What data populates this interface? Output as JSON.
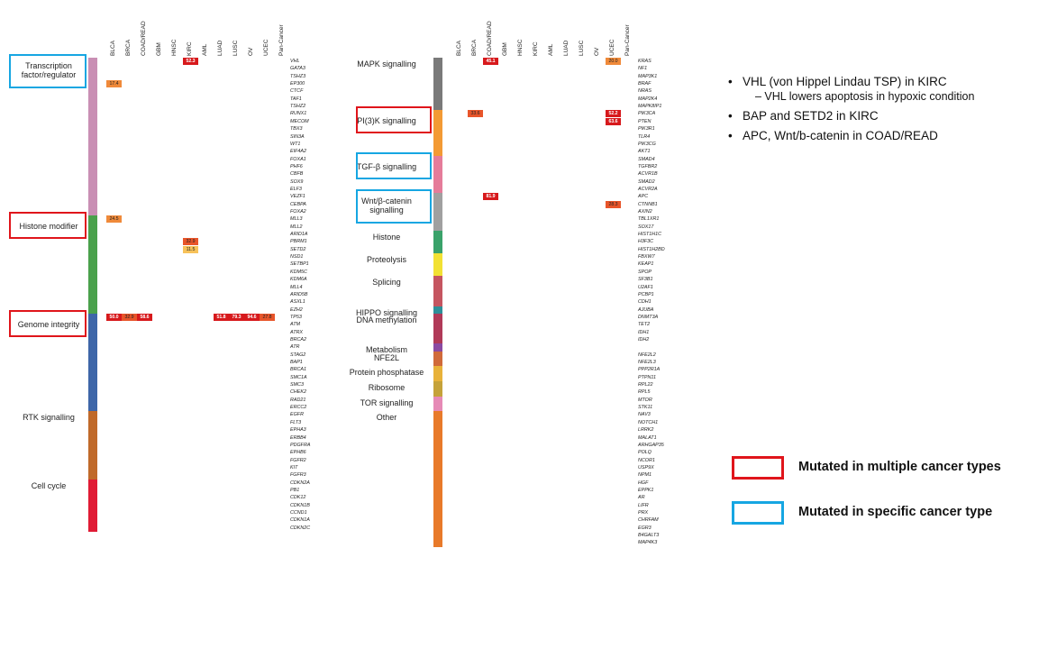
{
  "columns": [
    "BLCA",
    "BRCA",
    "COAD/READ",
    "GBM",
    "HNSC",
    "KIRC",
    "AML",
    "LUAD",
    "LUSC",
    "OV",
    "UCEC",
    "Pan-Cancer"
  ],
  "left_panel": {
    "groups": [
      {
        "label": "Transcription factor/regulator",
        "color": "#c98fb4",
        "genes": [
          "VHL",
          "GATA3",
          "TSHZ3",
          "EP300",
          "CTCF",
          "TAF1",
          "TSHZ2",
          "RUNX1",
          "MECOM",
          "TBX3",
          "SIN3A",
          "WT1",
          "EIF4A2",
          "FOXA1",
          "PHF6",
          "CBFB",
          "SOX9",
          "ELF3",
          "VEZF1",
          "CEBPA",
          "FOXA2"
        ]
      },
      {
        "label": "Histone modifier",
        "color": "#4aa14c",
        "genes": [
          "MLL3",
          "MLL2",
          "ARID1A",
          "PBRM1",
          "SETD2",
          "NSD1",
          "SETBP1",
          "KDM5C",
          "KDM6A",
          "MLL4",
          "ARID5B",
          "ASXL1",
          "EZH2"
        ]
      },
      {
        "label": "Genome integrity",
        "color": "#3e66a8",
        "genes": [
          "TP53",
          "ATM",
          "ATRX",
          "BRCA2",
          "ATR",
          "STAG2",
          "BAP1",
          "BRCA1",
          "SMC1A",
          "SMC3",
          "CHEK2",
          "RAD21",
          "ERCC2"
        ]
      },
      {
        "label": "RTK signalling",
        "color": "#c06a2a",
        "genes": [
          "EGFR",
          "FLT3",
          "EPHA3",
          "ERBB4",
          "PDGFRA",
          "EPHB6",
          "FGFR2",
          "KIT",
          "FGFR3"
        ]
      },
      {
        "label": "Cell cycle",
        "color": "#e01b35",
        "genes": [
          "CDKN2A",
          "PB1",
          "CDK12",
          "CDKN1B",
          "CCND1",
          "CDKN1A",
          "CDKN2C"
        ]
      }
    ]
  },
  "right_panel": {
    "groups": [
      {
        "label": "MAPK signalling",
        "color": "#7a7a7a",
        "genes": [
          "KRAS",
          "NF1",
          "MAP3K1",
          "BRAF",
          "NRAS",
          "MAP2K4",
          "MAPK8IP1"
        ]
      },
      {
        "label": "PI(3)K signalling",
        "color": "#f39a34",
        "genes": [
          "PIK3CA",
          "PTEN",
          "PIK3R1",
          "TLR4",
          "PIK3CG",
          "AKT1"
        ]
      },
      {
        "label": "TGF-β signalling",
        "color": "#e57c9a",
        "genes": [
          "SMAD4",
          "TGFBR2",
          "ACVR1B",
          "SMAD2",
          "ACVR2A"
        ]
      },
      {
        "label": "Wnt/β-catenin signalling",
        "color": "#a0a0a0",
        "genes": [
          "APC",
          "CTNNB1",
          "AXIN2",
          "TBL1XR1",
          "SOX17"
        ]
      },
      {
        "label": "Histone",
        "color": "#3aa26a",
        "genes": [
          "HIST1H1C",
          "H3F3C",
          "HIST1H2BD"
        ]
      },
      {
        "label": "Proteolysis",
        "color": "#f2e133",
        "genes": [
          "FBXW7",
          "KEAP1",
          "SPOP"
        ]
      },
      {
        "label": "Splicing",
        "color": "#c55560",
        "genes": [
          "SF3B1",
          "U2AF1",
          "PCBP1",
          "CDH1"
        ]
      },
      {
        "label": "HIPPO signalling",
        "color": "#2e8f99",
        "genes": [
          "AJUBA"
        ]
      },
      {
        "label": "DNA methylation",
        "color": "#b03a58",
        "genes": [
          "DNMT3A",
          "TET2",
          "IDH1",
          "IDH2"
        ]
      },
      {
        "label": "Metabolism",
        "color": "#8a4aa2",
        "genes": []
      },
      {
        "label": "NFE2L",
        "color": "#d06a3a",
        "genes": [
          "NFE2L2",
          "NFE2L3"
        ]
      },
      {
        "label": "Protein phosphatase",
        "color": "#e8b23a",
        "genes": [
          "PPP2R1A",
          "PTPN11"
        ]
      },
      {
        "label": "Ribosome",
        "color": "#c5a23a",
        "genes": [
          "RPL22",
          "RPL5"
        ]
      },
      {
        "label": "TOR signalling",
        "color": "#e68ab6",
        "genes": [
          "MTOR",
          "STK11"
        ]
      },
      {
        "label": "Other",
        "color": "#e87a2a",
        "genes": [
          "NAV3",
          "NOTCH1",
          "LRRK2",
          "MALAT1",
          "ARHGAP35",
          "POLQ",
          "NCOR1",
          "USP9X",
          "NPM1",
          "HGF",
          "EPPK1",
          "AR",
          "LIFR",
          "PRX",
          "CHRFAM",
          "EGR3",
          "B4GALT3",
          "MAP4K3"
        ]
      }
    ]
  },
  "highlights": {
    "left": {
      "Transcription factor/regulator": "blue",
      "Histone modifier": "red",
      "Genome integrity": "red"
    },
    "right": {
      "PI(3)K signalling": "red",
      "TGF-β signalling": "blue",
      "Wnt/β-catenin signalling": "blue"
    }
  },
  "notes": {
    "items": [
      {
        "text": "VHL (von Hippel Lindau TSP) in KIRC"
      },
      {
        "text": "– VHL lowers apoptosis in hypoxic condition",
        "sub": true
      },
      {
        "text": "BAP and SETD2 in KIRC"
      },
      {
        "text": "APC, Wnt/b-catenin in COAD/READ"
      }
    ]
  },
  "legend": [
    {
      "color": "#e0151b",
      "label": "Mutated in multiple cancer types"
    },
    {
      "color": "#16a6e2",
      "label": "Mutated in specific cancer type"
    }
  ],
  "notable_cells": [
    {
      "gene": "VHL",
      "col": "KIRC",
      "value": "52.3"
    },
    {
      "gene": "KRAS",
      "col": "COAD/READ",
      "value": "45.1"
    },
    {
      "gene": "APC",
      "col": "COAD/READ",
      "value": "81.9"
    },
    {
      "gene": "TP53",
      "col": "BLCA",
      "value": "50.0"
    },
    {
      "gene": "TP53",
      "col": "BRCA",
      "value": "32.9"
    },
    {
      "gene": "TP53",
      "col": "COAD/READ",
      "value": "58.6"
    },
    {
      "gene": "TP53",
      "col": "LUAD",
      "value": "51.8"
    },
    {
      "gene": "TP53",
      "col": "LUSC",
      "value": "79.3"
    },
    {
      "gene": "TP53",
      "col": "OV",
      "value": "94.6"
    },
    {
      "gene": "TP53",
      "col": "UCEC",
      "value": "27.8"
    },
    {
      "gene": "PIK3CA",
      "col": "BRCA",
      "value": "33.6"
    },
    {
      "gene": "PIK3CA",
      "col": "UCEC",
      "value": "52.2"
    },
    {
      "gene": "PTEN",
      "col": "UCEC",
      "value": "63.6"
    },
    {
      "gene": "PBRM1",
      "col": "KIRC",
      "value": "32.9"
    },
    {
      "gene": "SETD2",
      "col": "KIRC",
      "value": "11.5"
    },
    {
      "gene": "CTNNB1",
      "col": "UCEC",
      "value": "28.3"
    },
    {
      "gene": "KRAS",
      "col": "UCEC",
      "value": "20.0"
    },
    {
      "gene": "MLL3",
      "col": "BLCA",
      "value": "24.5"
    },
    {
      "gene": "EP300",
      "col": "BLCA",
      "value": "17.4"
    }
  ]
}
